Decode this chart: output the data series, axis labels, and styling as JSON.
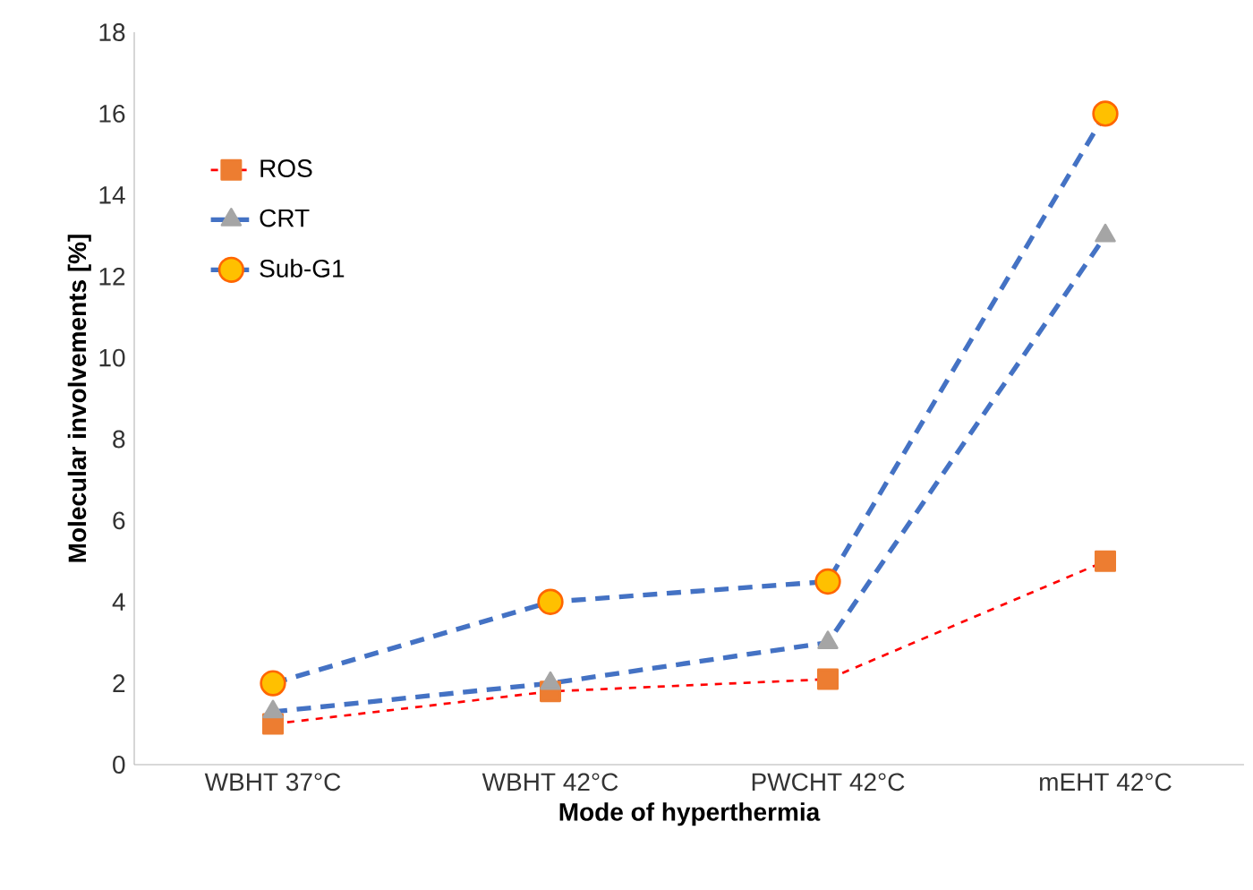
{
  "chart_data": {
    "type": "line",
    "xlabel": "Mode of hyperthermia",
    "ylabel": "Molecular involvements [%]",
    "categories": [
      "WBHT 37°C",
      "WBHT 42°C",
      "PWCHT 42°C",
      "mEHT 42°C"
    ],
    "ylim": [
      0,
      18
    ],
    "yticks": [
      0,
      2,
      4,
      6,
      8,
      10,
      12,
      14,
      16,
      18
    ],
    "grid": false,
    "legend": "top left",
    "line_style": "dashed",
    "series": [
      {
        "name": "ROS",
        "color": "#ff0000",
        "marker": "square",
        "values": [
          1,
          1.8,
          2.1,
          5
        ]
      },
      {
        "name": "CRT",
        "color": "#4472c4",
        "marker": "triangle",
        "values": [
          1.3,
          2,
          3,
          13
        ]
      },
      {
        "name": "Sub-G1",
        "color": "#4472c4",
        "marker": "circle",
        "values": [
          2,
          4,
          4.5,
          16
        ]
      }
    ]
  }
}
